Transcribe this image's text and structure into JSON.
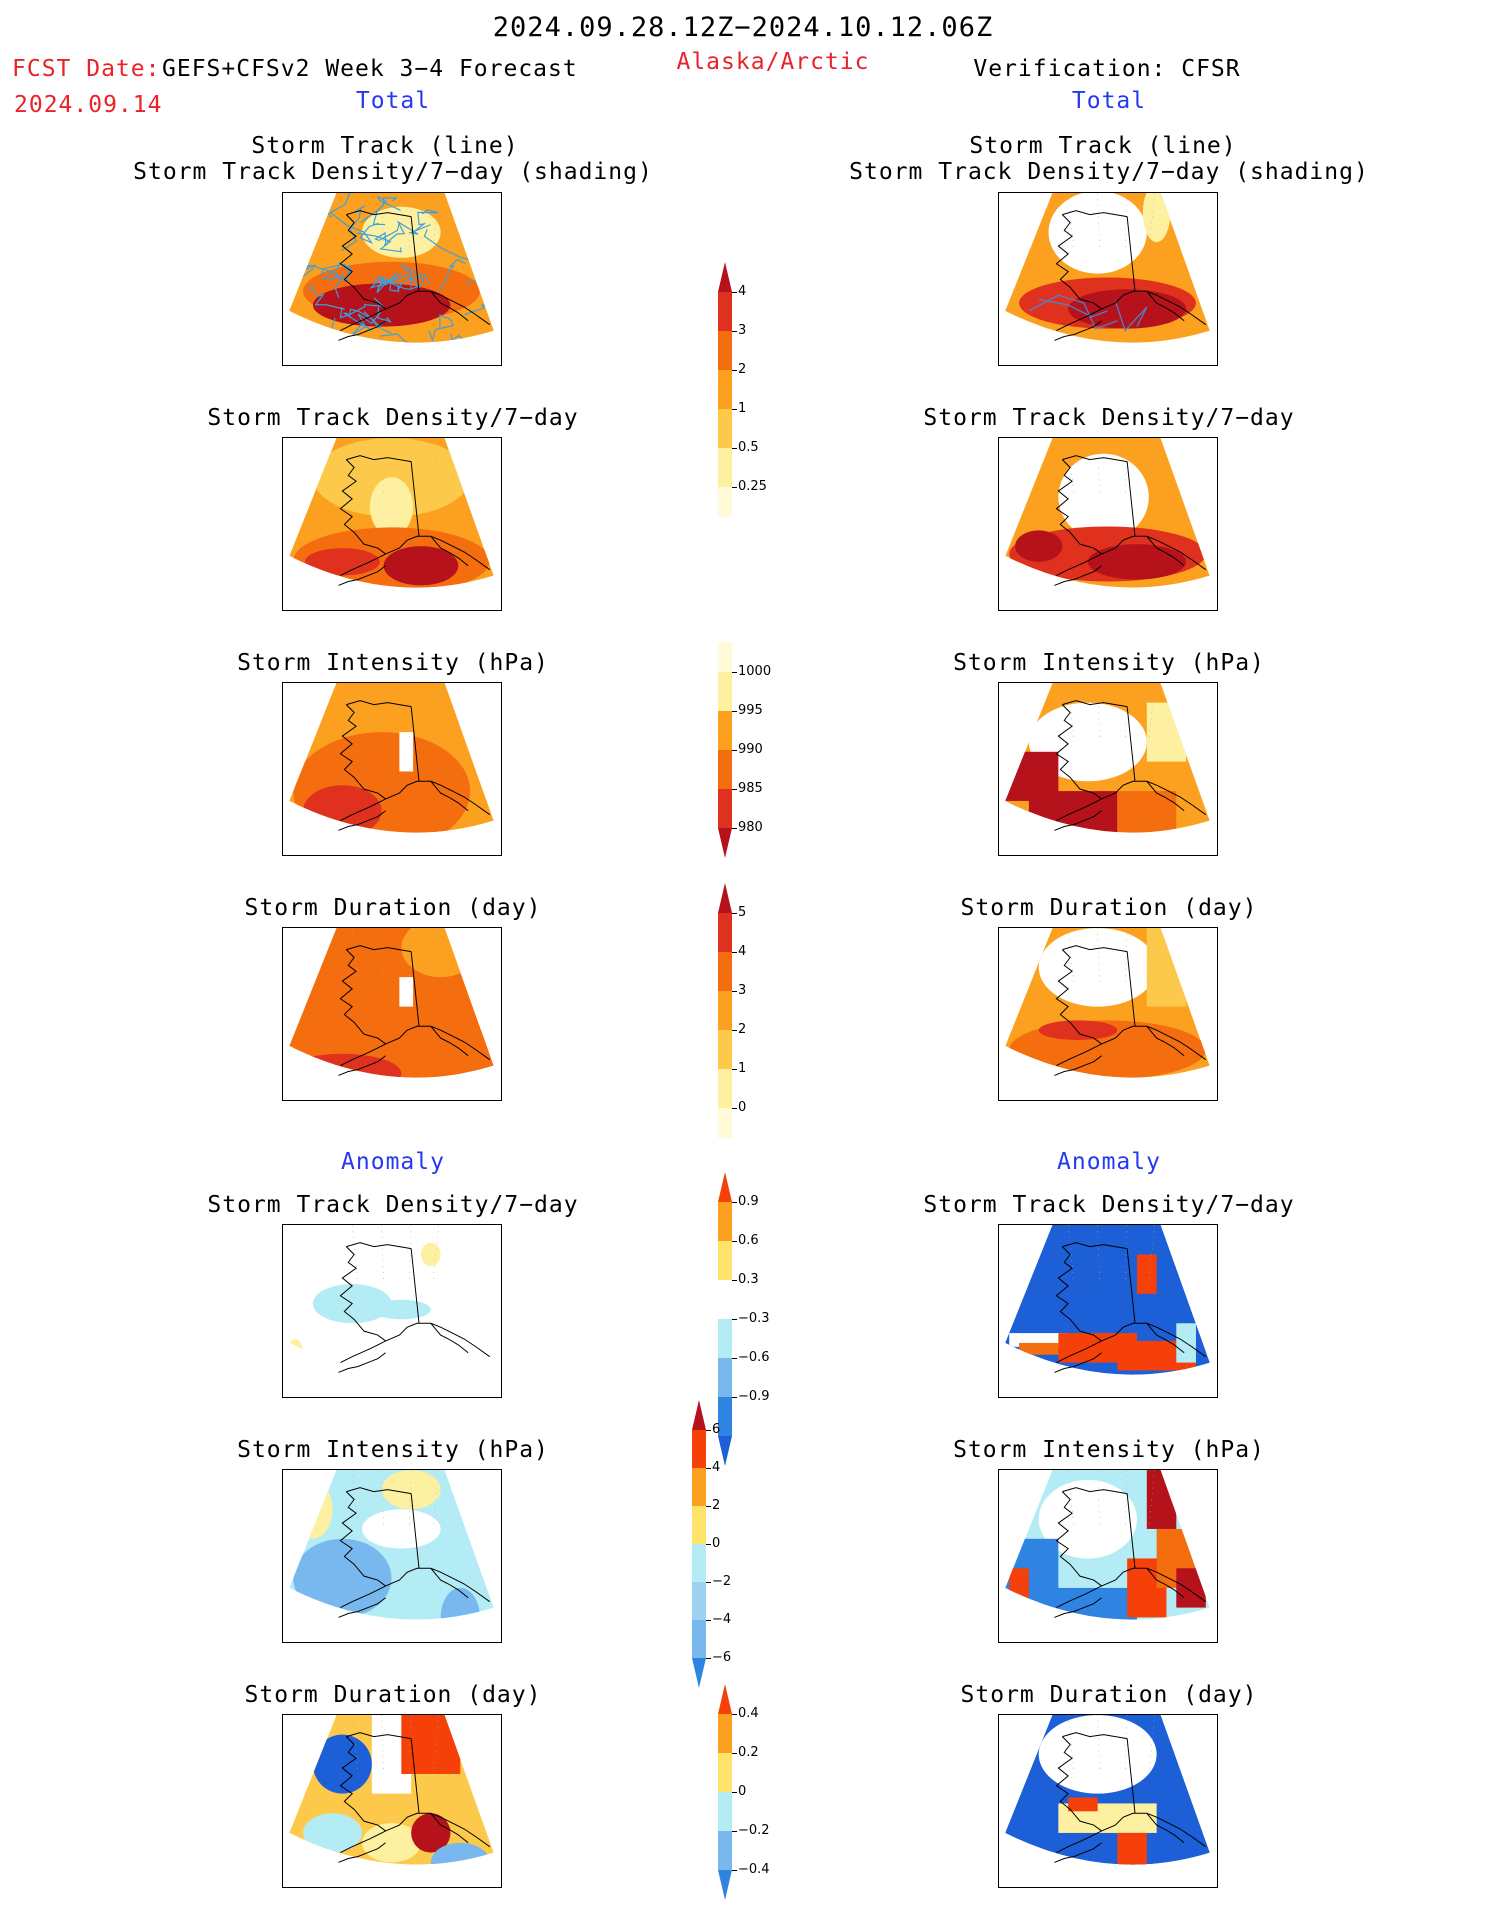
{
  "header": {
    "date_range": "2024.09.28.12Z−2024.10.12.06Z",
    "fcst_label": "FCST Date:",
    "forecast_name": "GEFS+CFSv2 Week 3−4 Forecast",
    "fcst_date": "2024.09.14",
    "region": "Alaska/Arctic",
    "verification": "Verification: CFSR",
    "left_section": "Total",
    "right_section": "Total"
  },
  "sections": {
    "anomaly_left": "Anomaly",
    "anomaly_right": "Anomaly"
  },
  "panel_titles": {
    "track_line": "Storm Track (line)",
    "track_shading": "Storm Track Density/7−day (shading)",
    "track_density": "Storm Track Density/7−day",
    "intensity": "Storm Intensity (hPa)",
    "duration": "Storm Duration (day)"
  },
  "colorbars": {
    "density": {
      "labels": [
        "4",
        "3",
        "2",
        "1",
        "0.5",
        "0.25"
      ],
      "colors": [
        "#b5121b",
        "#e0301e",
        "#f46d0f",
        "#fba11f",
        "#fdc94a",
        "#fdf0a0",
        "#fffbd8"
      ]
    },
    "intensity": {
      "labels": [
        "1000",
        "995",
        "990",
        "985",
        "980"
      ],
      "colors": [
        "#fffbd8",
        "#fdf0a0",
        "#fba11f",
        "#f46d0f",
        "#e0301e",
        "#b5121b"
      ]
    },
    "duration": {
      "labels": [
        "5",
        "4",
        "3",
        "2",
        "1",
        "0"
      ],
      "colors": [
        "#b5121b",
        "#e0301e",
        "#f46d0f",
        "#fba11f",
        "#fdc94a",
        "#fdf0a0",
        "#fffbd8"
      ]
    },
    "density_anom": {
      "labels": [
        "0.9",
        "0.6",
        "0.3",
        "−0.3",
        "−0.6",
        "−0.9"
      ],
      "colors": [
        "#f5400a",
        "#fba11f",
        "#fde36a",
        "#ffffff",
        "#b3ecf5",
        "#79b8ef",
        "#2f84e2",
        "#1c5fd6"
      ]
    },
    "intensity_anom": {
      "labels": [
        "6",
        "4",
        "2",
        "0",
        "−2",
        "−4",
        "−6"
      ],
      "colors": [
        "#b5121b",
        "#f5400a",
        "#fba11f",
        "#fde36a",
        "#b3ecf5",
        "#9fd2f2",
        "#79b8ef",
        "#2f84e2"
      ]
    },
    "duration_anom": {
      "labels": [
        "0.4",
        "0.2",
        "0",
        "−0.2",
        "−0.4"
      ],
      "colors": [
        "#f5400a",
        "#fba11f",
        "#fde36a",
        "#b3ecf5",
        "#79b8ef",
        "#2f84e2"
      ]
    }
  },
  "palette": {
    "dark_red": "#b5121b",
    "red": "#e0301e",
    "orange": "#f46d0f",
    "light_orange": "#fba11f",
    "yellow": "#fdc94a",
    "pale_yellow": "#fdf0a0",
    "cream": "#fffbd8",
    "light_blue": "#b3ecf5",
    "mid_blue": "#79b8ef",
    "blue": "#2f84e2",
    "dark_blue": "#1c5fd6",
    "track_line": "#3aa0e0"
  }
}
